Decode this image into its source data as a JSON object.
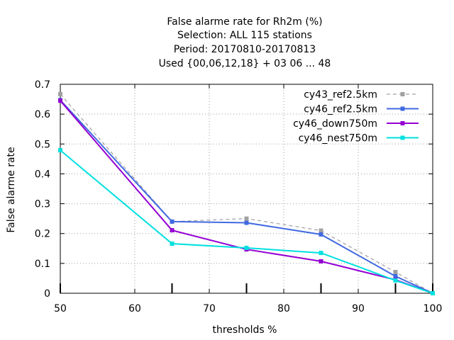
{
  "chart_data": {
    "type": "line",
    "title_lines": [
      "False alarme rate  for Rh2m (%)",
      "Selection: ALL    115 stations",
      "Period: 20170810-20170813",
      "Used {00,06,12,18} + 03 06 ... 48"
    ],
    "xlabel": "thresholds %",
    "ylabel": "False alarme rate",
    "xlim": [
      50,
      100
    ],
    "ylim": [
      0,
      0.7
    ],
    "xticks": [
      50,
      60,
      70,
      80,
      90,
      100
    ],
    "yticks": [
      0,
      0.1,
      0.2,
      0.3,
      0.4,
      0.5,
      0.6,
      0.7
    ],
    "xtick_labels": [
      "50",
      "60",
      "70",
      "80",
      "90",
      "100"
    ],
    "ytick_labels": [
      "0",
      "0.1",
      "0.2",
      "0.3",
      "0.4",
      "0.5",
      "0.6",
      "0.7"
    ],
    "grid": true,
    "legend_position": "top-right",
    "threshold_markers": [
      50,
      65,
      75,
      85,
      95,
      100
    ],
    "x": [
      50,
      65,
      75,
      85,
      95,
      100
    ],
    "series": [
      {
        "name": "cy43_ref2.5km",
        "color": "#a0a0a0",
        "dashed": true,
        "values": [
          0.667,
          0.24,
          0.25,
          0.21,
          0.071,
          0.0
        ]
      },
      {
        "name": "cy46_ref2.5km",
        "color": "#4169e1",
        "dashed": false,
        "values": [
          0.647,
          0.24,
          0.236,
          0.197,
          0.057,
          0.0
        ]
      },
      {
        "name": "cy46_down750m",
        "color": "#9400d3",
        "dashed": false,
        "values": [
          0.645,
          0.211,
          0.147,
          0.107,
          0.045,
          0.0
        ]
      },
      {
        "name": "cy46_nest750m",
        "color": "#00e0e0",
        "dashed": false,
        "values": [
          0.479,
          0.166,
          0.152,
          0.135,
          0.043,
          0.0
        ]
      }
    ]
  }
}
